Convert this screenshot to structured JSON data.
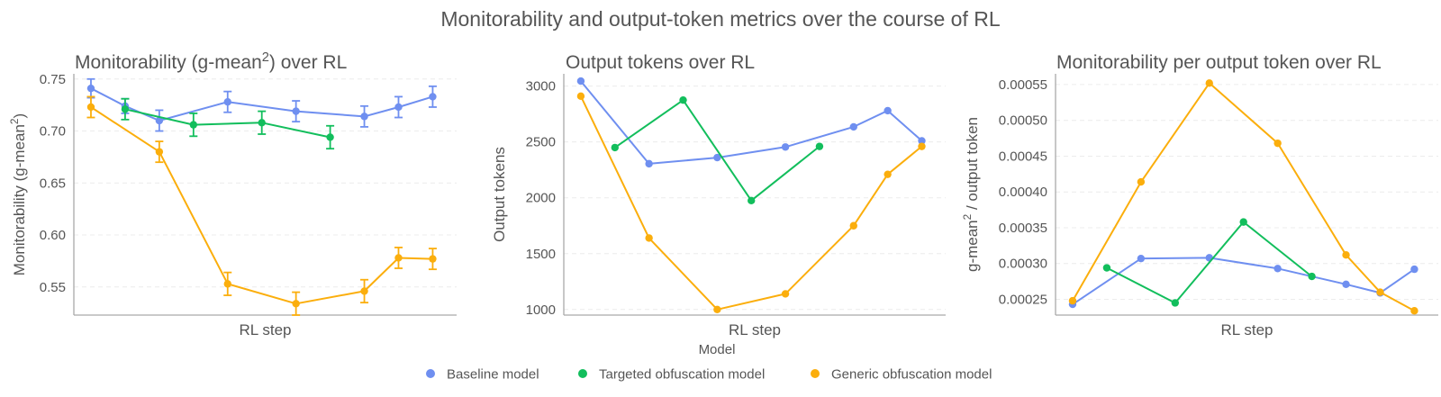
{
  "figure": {
    "suptitle": "Monitorability and output-token metrics over the course of RL"
  },
  "legend": {
    "title": "Model",
    "entries": [
      "Baseline model",
      "Targeted obfuscation model",
      "Generic obfuscation model"
    ],
    "placement": "bottom-center"
  },
  "colors": {
    "baseline": "#6f8ff0",
    "targeted": "#12be5c",
    "generic": "#fbae0c",
    "axis": "#a9a9a9",
    "grid": "#ececec",
    "text": "#555555"
  },
  "chart_data": [
    {
      "type": "line",
      "title_prefix": "Monitorability (g-mean",
      "title_sup": "2",
      "title_suffix": ") over RL",
      "xlabel": "RL step",
      "ylabel_prefix": "Monitorability (g-mean",
      "ylabel_sup": "2",
      "ylabel_suffix": ")",
      "ylim": [
        0.523,
        0.755
      ],
      "xlim": [
        0,
        11.2
      ],
      "yticks": [
        0.55,
        0.6,
        0.65,
        0.7,
        0.75
      ],
      "ytick_labels": [
        "0.55",
        "0.60",
        "0.65",
        "0.70",
        "0.75"
      ],
      "grid": true,
      "series": [
        {
          "name": "Baseline model",
          "key": "baseline",
          "x": [
            0.5,
            1.5,
            2.5,
            4.5,
            6.5,
            8.5,
            9.5,
            10.5
          ],
          "y": [
            0.741,
            0.724,
            0.71,
            0.728,
            0.719,
            0.714,
            0.723,
            0.733
          ],
          "err": [
            0.009,
            0.007,
            0.01,
            0.01,
            0.01,
            0.01,
            0.01,
            0.01
          ]
        },
        {
          "name": "Targeted obfuscation model",
          "key": "targeted",
          "x": [
            1.5,
            3.5,
            5.5,
            7.5
          ],
          "y": [
            0.721,
            0.706,
            0.708,
            0.694
          ],
          "err": [
            0.01,
            0.011,
            0.011,
            0.011
          ]
        },
        {
          "name": "Generic obfuscation model",
          "key": "generic",
          "x": [
            0.5,
            2.5,
            4.5,
            6.5,
            8.5,
            9.5,
            10.5
          ],
          "y": [
            0.723,
            0.68,
            0.553,
            0.534,
            0.546,
            0.578,
            0.577
          ],
          "err": [
            0.01,
            0.01,
            0.011,
            0.011,
            0.011,
            0.01,
            0.01
          ]
        }
      ]
    },
    {
      "type": "line",
      "title_prefix": "Output tokens over RL",
      "title_sup": "",
      "title_suffix": "",
      "xlabel": "RL step",
      "ylabel_prefix": "Output tokens",
      "ylabel_sup": "",
      "ylabel_suffix": "",
      "ylim": [
        950,
        3110
      ],
      "xlim": [
        0,
        11.2
      ],
      "yticks": [
        1000,
        1500,
        2000,
        2500,
        3000
      ],
      "ytick_labels": [
        "1000",
        "1500",
        "2000",
        "2500",
        "3000"
      ],
      "grid": true,
      "series": [
        {
          "name": "Baseline model",
          "key": "baseline",
          "x": [
            0.5,
            2.5,
            4.5,
            6.5,
            8.5,
            9.5,
            10.5
          ],
          "y": [
            3045,
            2305,
            2360,
            2455,
            2635,
            2780,
            2510
          ]
        },
        {
          "name": "Targeted obfuscation model",
          "key": "targeted",
          "x": [
            1.5,
            3.5,
            5.5,
            7.5
          ],
          "y": [
            2450,
            2875,
            1975,
            2460
          ]
        },
        {
          "name": "Generic obfuscation model",
          "key": "generic",
          "x": [
            0.5,
            2.5,
            4.5,
            6.5,
            8.5,
            9.5,
            10.5
          ],
          "y": [
            2910,
            1640,
            1000,
            1140,
            1750,
            2210,
            2460
          ]
        }
      ]
    },
    {
      "type": "line",
      "title_prefix": "Monitorability per output token over RL",
      "title_sup": "",
      "title_suffix": "",
      "xlabel": "RL step",
      "ylabel_prefix": "g-mean",
      "ylabel_sup": "2",
      "ylabel_suffix": " / output token",
      "ylim": [
        0.000228,
        0.000565
      ],
      "xlim": [
        0,
        11.2
      ],
      "yticks": [
        0.00025,
        0.0003,
        0.00035,
        0.0004,
        0.00045,
        0.0005,
        0.00055
      ],
      "ytick_labels": [
        "0.00025",
        "0.00030",
        "0.00035",
        "0.00040",
        "0.00045",
        "0.00050",
        "0.00055"
      ],
      "grid": true,
      "series": [
        {
          "name": "Baseline model",
          "key": "baseline",
          "x": [
            0.5,
            2.5,
            4.5,
            6.5,
            8.5,
            9.5,
            10.5
          ],
          "y": [
            0.000243,
            0.000307,
            0.000308,
            0.000293,
            0.000271,
            0.000259,
            0.000292
          ]
        },
        {
          "name": "Targeted obfuscation model",
          "key": "targeted",
          "x": [
            1.5,
            3.5,
            5.5,
            7.5
          ],
          "y": [
            0.000294,
            0.000245,
            0.000358,
            0.000282
          ]
        },
        {
          "name": "Generic obfuscation model",
          "key": "generic",
          "x": [
            0.5,
            2.5,
            4.5,
            6.5,
            8.5,
            9.5,
            10.5
          ],
          "y": [
            0.000248,
            0.000414,
            0.000552,
            0.000468,
            0.000312,
            0.00026,
            0.000234
          ]
        }
      ]
    }
  ]
}
